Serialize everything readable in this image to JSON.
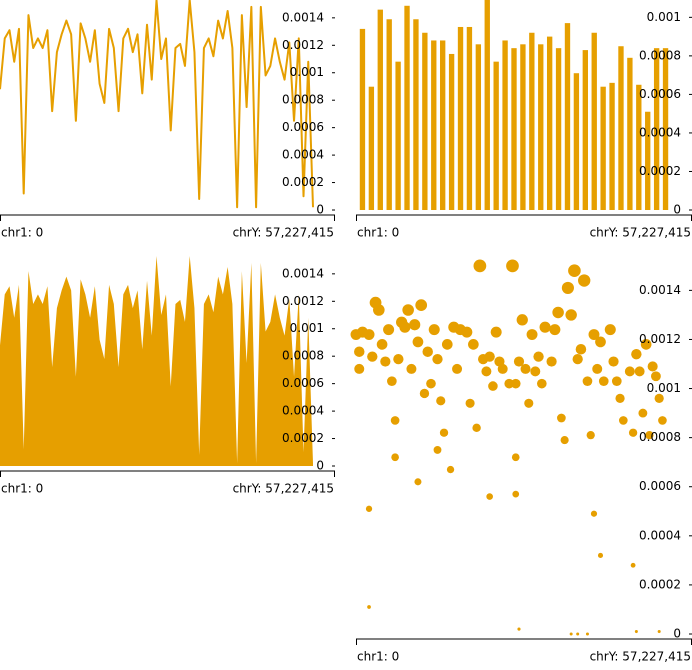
{
  "chart_data": [
    {
      "type": "line",
      "color": "#e69f00",
      "values": [
        0.00088,
        0.00125,
        0.00131,
        0.00108,
        0.00132,
        0.00012,
        0.00142,
        0.00118,
        0.00125,
        0.00118,
        0.00131,
        0.00072,
        0.00115,
        0.00128,
        0.00138,
        0.00128,
        0.00065,
        0.00136,
        0.00125,
        0.00108,
        0.00131,
        0.00092,
        0.00078,
        0.00132,
        0.00118,
        0.00072,
        0.00125,
        0.00132,
        0.00115,
        0.00128,
        0.00085,
        0.00135,
        0.00095,
        0.00153,
        0.0011,
        0.00125,
        0.00058,
        0.00118,
        0.00121,
        0.00105,
        0.00153,
        0.00115,
        8e-05,
        0.00118,
        0.00125,
        0.00112,
        0.00138,
        0.00125,
        0.00145,
        0.00118,
        2e-05,
        0.00142,
        0.00075,
        0.00148,
        2e-05,
        0.00148,
        0.00098,
        0.00105,
        0.00125,
        0.00108,
        0.00095,
        0.00122,
        0.00065,
        0.00125,
        0.0001,
        0.00108,
        2e-05
      ],
      "ylim": [
        0,
        0.00153
      ],
      "yticks": [
        0,
        0.0002,
        0.0004,
        0.0006,
        0.0008,
        0.001,
        0.0012,
        0.0014
      ],
      "xtick_labels": [
        "chr1: 0",
        "chrY: 57,227,415"
      ]
    },
    {
      "type": "bar",
      "color": "#e69f00",
      "values": [
        0.00094,
        0.00064,
        0.00104,
        0.00099,
        0.00077,
        0.00106,
        0.00099,
        0.00092,
        0.00088,
        0.00088,
        0.00081,
        0.00095,
        0.00095,
        0.00086,
        0.00109,
        0.00077,
        0.00088,
        0.00084,
        0.00086,
        0.00092,
        0.00086,
        0.0009,
        0.00084,
        0.00097,
        0.00071,
        0.00083,
        0.00092,
        0.00064,
        0.00066,
        0.00085,
        0.00079,
        0.00065,
        0.00051,
        0.00084,
        0.00084
      ],
      "ylim": [
        0,
        0.00109
      ],
      "yticks": [
        0,
        0.0002,
        0.0004,
        0.0006,
        0.0008,
        0.001
      ],
      "xtick_labels": [
        "chr1: 0",
        "chrY: 57,227,415"
      ]
    },
    {
      "type": "area",
      "color": "#e69f00",
      "values": [
        0.00088,
        0.00125,
        0.00131,
        0.00108,
        0.00132,
        0.00012,
        0.00142,
        0.00118,
        0.00125,
        0.00118,
        0.00131,
        0.00072,
        0.00115,
        0.00128,
        0.00138,
        0.00128,
        0.00065,
        0.00136,
        0.00125,
        0.00108,
        0.00131,
        0.00092,
        0.00078,
        0.00132,
        0.00118,
        0.00072,
        0.00125,
        0.00132,
        0.00115,
        0.00128,
        0.00085,
        0.00135,
        0.00095,
        0.00153,
        0.0011,
        0.00125,
        0.00058,
        0.00118,
        0.00121,
        0.00105,
        0.00153,
        0.00115,
        8e-05,
        0.00118,
        0.00125,
        0.00112,
        0.00138,
        0.00125,
        0.00145,
        0.00118,
        2e-05,
        0.00142,
        0.00075,
        0.00148,
        2e-05,
        0.00148,
        0.00098,
        0.00105,
        0.00125,
        0.00108,
        0.00095,
        0.00122,
        0.00065,
        0.00125,
        0.0001,
        0.00108,
        2e-05
      ],
      "ylim": [
        0,
        0.00153
      ],
      "yticks": [
        0,
        0.0002,
        0.0004,
        0.0006,
        0.0008,
        0.001,
        0.0012,
        0.0014
      ],
      "xtick_labels": [
        "chr1: 0",
        "chrY: 57,227,415"
      ]
    },
    {
      "type": "scatter",
      "color": "#e69f00",
      "x": [
        0,
        1,
        1,
        2,
        4,
        5,
        6,
        7,
        8,
        9,
        10,
        11,
        12,
        13,
        14,
        15,
        16,
        17,
        18,
        19,
        20,
        21,
        22,
        23,
        24,
        25,
        26,
        27,
        28,
        30,
        31,
        32,
        34,
        35,
        36,
        37,
        38,
        39,
        40,
        41,
        42,
        43,
        44,
        45,
        47,
        48,
        49,
        50,
        51,
        52,
        53,
        54,
        55,
        56,
        57,
        58,
        60,
        61,
        62,
        63,
        64,
        65,
        66,
        67,
        68,
        69,
        70,
        71,
        72,
        73,
        74,
        75,
        76,
        78,
        79,
        80,
        81,
        82,
        84,
        85,
        86,
        87,
        88,
        89,
        90,
        91,
        92,
        93,
        94,
        4,
        4,
        12,
        19,
        25,
        29,
        41,
        49,
        50,
        49,
        73,
        75,
        85,
        86,
        93,
        66,
        68,
        71
      ],
      "values": [
        0.00122,
        0.00115,
        0.00108,
        0.00123,
        0.00122,
        0.00113,
        0.00135,
        0.00132,
        0.00118,
        0.00111,
        0.00124,
        0.00103,
        0.00087,
        0.00112,
        0.00127,
        0.00125,
        0.00132,
        0.00108,
        0.00126,
        0.00119,
        0.00134,
        0.00098,
        0.00115,
        0.00102,
        0.00124,
        0.00112,
        0.00095,
        0.00082,
        0.00118,
        0.00125,
        0.00108,
        0.00124,
        0.00123,
        0.00094,
        0.00118,
        0.00084,
        0.0015,
        0.00112,
        0.00107,
        0.00113,
        0.00101,
        0.00123,
        0.00111,
        0.00108,
        0.00102,
        0.0015,
        0.00102,
        0.00111,
        0.00128,
        0.00108,
        0.00094,
        0.00122,
        0.00107,
        0.00113,
        0.00102,
        0.00125,
        0.00111,
        0.00124,
        0.00131,
        0.00088,
        0.00079,
        0.00141,
        0.0013,
        0.00148,
        0.00112,
        0.00116,
        0.00144,
        0.00103,
        0.00081,
        0.00122,
        0.00108,
        0.00119,
        0.00103,
        0.00124,
        0.00111,
        0.00103,
        0.00096,
        0.00087,
        0.00107,
        0.00082,
        0.00114,
        0.00107,
        0.0009,
        0.00118,
        0.00081,
        0.00109,
        0.00105,
        0.00096,
        0.00087,
        0.00051,
        0.00011,
        0.00072,
        0.00062,
        0.00075,
        0.00067,
        0.00056,
        0.00057,
        2e-05,
        0.00072,
        0.00049,
        0.00032,
        0.00028,
        1e-05,
        1e-05,
        0,
        0,
        0
      ],
      "xlim": [
        0,
        100
      ],
      "ylim": [
        0,
        0.00154
      ],
      "yticks": [
        0,
        0.0002,
        0.0004,
        0.0006,
        0.0008,
        0.001,
        0.0012,
        0.0014
      ],
      "xtick_labels": [
        "chr1: 0",
        "chrY: 57,227,415"
      ]
    }
  ]
}
